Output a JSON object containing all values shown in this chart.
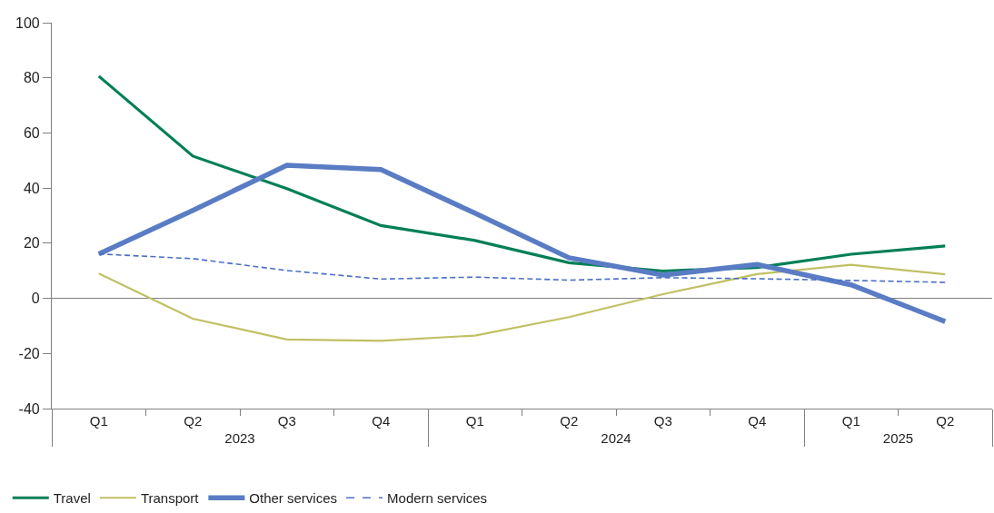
{
  "chart_data": {
    "type": "line",
    "categories": [
      "Q1",
      "Q2",
      "Q3",
      "Q4",
      "Q1",
      "Q2",
      "Q3",
      "Q4",
      "Q1",
      "Q2"
    ],
    "annotations": [
      "2023",
      "2024",
      "2025"
    ],
    "series": [
      {
        "name": "Travel",
        "color": "#007f56",
        "values": [
          80.6,
          51.6,
          39.8,
          26.4,
          21.0,
          12.9,
          9.9,
          11.2,
          16.0,
          19.0
        ]
      },
      {
        "name": "Transport",
        "color": "#c0c064",
        "values": [
          9.0,
          -7.4,
          -14.9,
          -15.4,
          -13.5,
          -6.8,
          1.5,
          8.8,
          12.2,
          8.7
        ]
      },
      {
        "name": "Other services",
        "color": "#5a7cc4",
        "values": [
          16.1,
          31.9,
          48.3,
          46.7,
          30.9,
          14.7,
          8.4,
          12.3,
          4.9,
          -8.4
        ]
      },
      {
        "name": "Modern services",
        "color": "#4a6fc6",
        "line_style": "dashed",
        "values": [
          16.1,
          14.4,
          10.1,
          7.0,
          7.7,
          6.6,
          7.5,
          7.1,
          6.5,
          5.8
        ]
      }
    ],
    "ylim": [
      -40,
      100
    ],
    "yticks": [
      -40,
      -20,
      0,
      20,
      40,
      60,
      80,
      100
    ],
    "legend": "bottom left",
    "line_style": "solid"
  }
}
